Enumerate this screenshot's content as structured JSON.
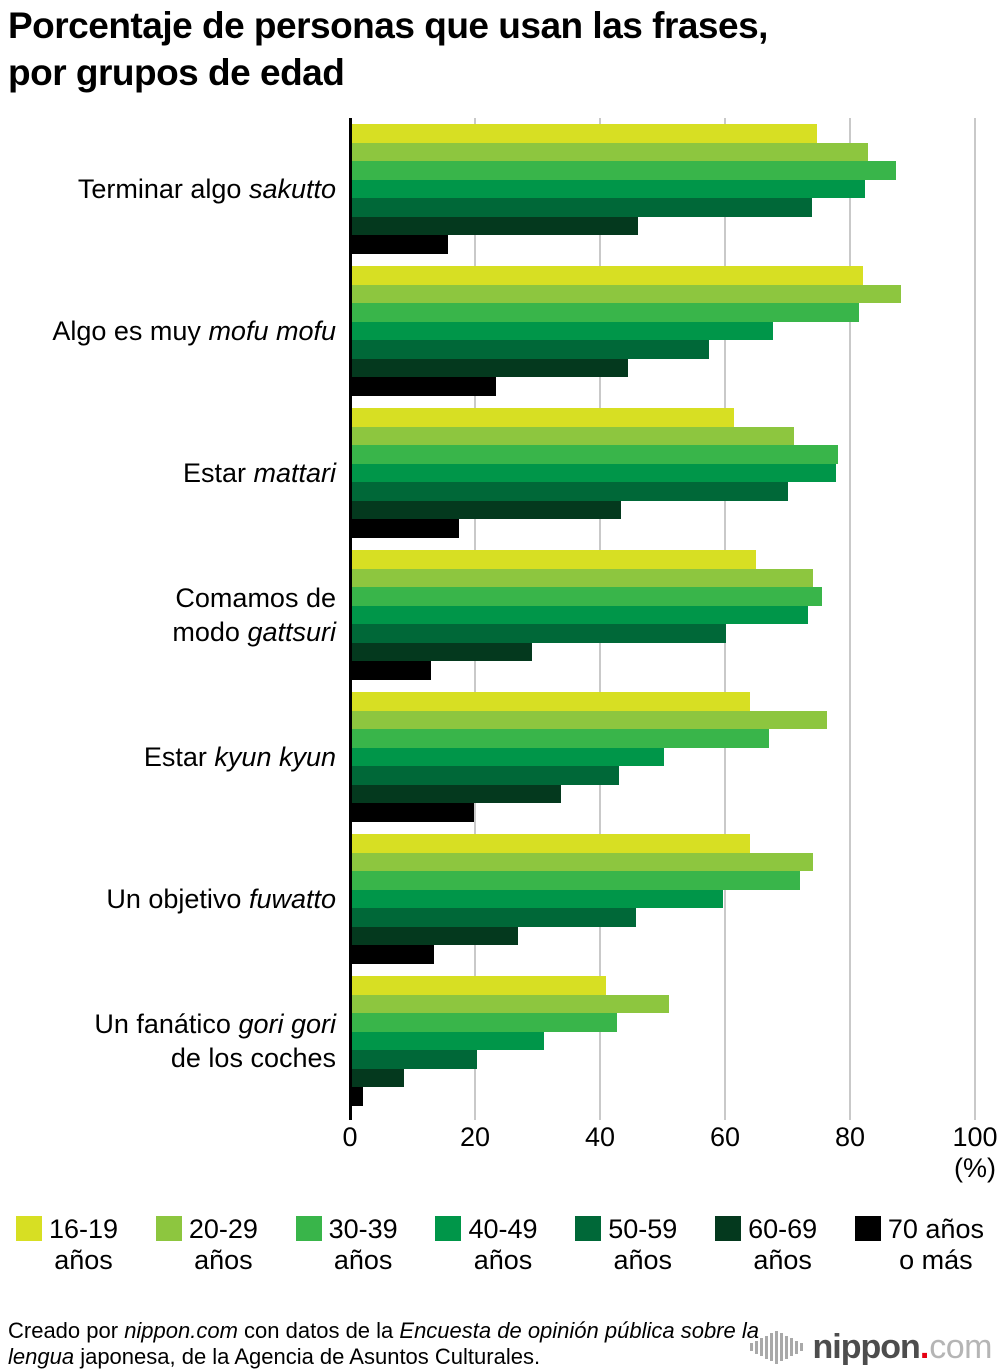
{
  "title": "Porcentaje de personas que usan las frases,\npor grupos de edad",
  "xaxis_unit": "(%)",
  "chart_data": {
    "type": "bar",
    "orientation": "horizontal",
    "xlim": [
      0,
      100
    ],
    "xticks": [
      0,
      20,
      40,
      60,
      80,
      100
    ],
    "grid": true,
    "legend_position": "bottom",
    "categories": [
      "Terminar algo sakutto",
      "Algo es muy mofu mofu",
      "Estar mattari",
      "Comamos de modo gattsuri",
      "Estar kyun kyun",
      "Un objetivo fuwatto",
      "Un fanático gori gori de los coches"
    ],
    "category_lines": [
      [
        [
          {
            "t": "Terminar algo ",
            "i": false
          },
          {
            "t": "sakutto",
            "i": true
          }
        ]
      ],
      [
        [
          {
            "t": "Algo es muy ",
            "i": false
          },
          {
            "t": "mofu mofu",
            "i": true
          }
        ]
      ],
      [
        [
          {
            "t": "Estar ",
            "i": false
          },
          {
            "t": "mattari",
            "i": true
          }
        ]
      ],
      [
        [
          {
            "t": "Comamos de",
            "i": false
          }
        ],
        [
          {
            "t": "modo ",
            "i": false
          },
          {
            "t": "gattsuri",
            "i": true
          }
        ]
      ],
      [
        [
          {
            "t": "Estar ",
            "i": false
          },
          {
            "t": "kyun kyun",
            "i": true
          }
        ]
      ],
      [
        [
          {
            "t": "Un objetivo ",
            "i": false
          },
          {
            "t": "fuwatto",
            "i": true
          }
        ]
      ],
      [
        [
          {
            "t": "Un fanático ",
            "i": false
          },
          {
            "t": "gori gori",
            "i": true
          }
        ],
        [
          {
            "t": "de los coches",
            "i": false
          }
        ]
      ]
    ],
    "series": [
      {
        "name": "16-19 años",
        "color": "#d7df23",
        "values": [
          74.7,
          82.0,
          61.5,
          65.0,
          64.0,
          64.0,
          41.0
        ]
      },
      {
        "name": "20-29 años",
        "color": "#8dc63f",
        "values": [
          82.8,
          88.2,
          71.0,
          74.0,
          76.3,
          74.0,
          51.0
        ]
      },
      {
        "name": "30-39 años",
        "color": "#39b54a",
        "values": [
          87.3,
          81.5,
          78.0,
          75.5,
          67.0,
          72.0,
          42.7
        ]
      },
      {
        "name": "40-49 años",
        "color": "#009649",
        "values": [
          82.4,
          67.6,
          77.7,
          73.2,
          50.3,
          59.6,
          31.1
        ]
      },
      {
        "name": "50-59 años",
        "color": "#006838",
        "values": [
          73.9,
          57.5,
          70.0,
          60.2,
          43.0,
          45.7,
          20.3
        ]
      },
      {
        "name": "60-69 años",
        "color": "#04391e",
        "values": [
          46.1,
          44.4,
          43.4,
          29.1,
          33.7,
          26.8,
          8.7
        ]
      },
      {
        "name": "70 años o más",
        "color": "#000000",
        "values": [
          15.7,
          23.4,
          17.4,
          12.9,
          19.8,
          13.5,
          2.1
        ]
      }
    ]
  },
  "legend": {
    "items": [
      {
        "line1": "16-19",
        "line2": "años",
        "color": "#d7df23"
      },
      {
        "line1": "20-29",
        "line2": "años",
        "color": "#8dc63f"
      },
      {
        "line1": "30-39",
        "line2": "años",
        "color": "#39b54a"
      },
      {
        "line1": "40-49",
        "line2": "años",
        "color": "#009649"
      },
      {
        "line1": "50-59",
        "line2": "años",
        "color": "#006838"
      },
      {
        "line1": "60-69",
        "line2": "años",
        "color": "#04391e"
      },
      {
        "line1": "70 años",
        "line2": "o más",
        "color": "#000000"
      }
    ]
  },
  "footer": {
    "credit_segments": [
      {
        "t": "Creado por ",
        "i": false
      },
      {
        "t": "nippon.com",
        "i": true
      },
      {
        "t": " con datos de la ",
        "i": false
      },
      {
        "t": "Encuesta de opinión pública sobre la lengua",
        "i": true
      },
      {
        "t": " japonesa, de la Agencia de Asuntos Culturales.",
        "i": false
      }
    ],
    "logo": {
      "name": "nippon",
      "dot": ".",
      "tld": "com"
    }
  },
  "colors": {
    "gridline": "#c9c9c9",
    "axis": "#000000",
    "logo_name": "#4d4d4d",
    "logo_dot": "#e60012",
    "logo_tld": "#b5b5b5",
    "logo_icon": "#a9a9a9"
  }
}
